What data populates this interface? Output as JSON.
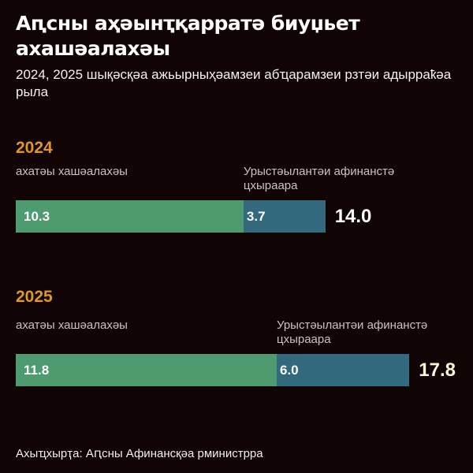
{
  "title": "Аԥсны аҳәынҭқарратә биуџьет ахашәалахәы",
  "subtitle": "2024, 2025 шықәсқәа ажьырныҳәамзеи абҵарамзеи рзтәи адырраҟәа рыла",
  "source": "Ахыҵхырҭа: Аԥсны Афинансқәа рминистрра",
  "colors": {
    "own_revenue": "#4e9b6f",
    "russian_aid": "#33697d",
    "year": "#e0962a",
    "total_2024": "#ffffff",
    "total_2025": "#fff6d8",
    "background": "#110405"
  },
  "chart_data": {
    "type": "bar",
    "orientation": "horizontal",
    "stacked": true,
    "categories": [
      "2024",
      "2025"
    ],
    "series": [
      {
        "name": "ахатәы хашәалахәы",
        "values": [
          10.3,
          11.8
        ]
      },
      {
        "name": "Урыстәылантәи афинанстә цхыраара",
        "values": [
          3.7,
          6.0
        ]
      }
    ],
    "totals": [
      "14.0",
      "17.8"
    ],
    "value_labels": [
      [
        "10.3",
        "3.7"
      ],
      [
        "11.8",
        "6.0"
      ]
    ],
    "grid": false,
    "legend": "none"
  }
}
